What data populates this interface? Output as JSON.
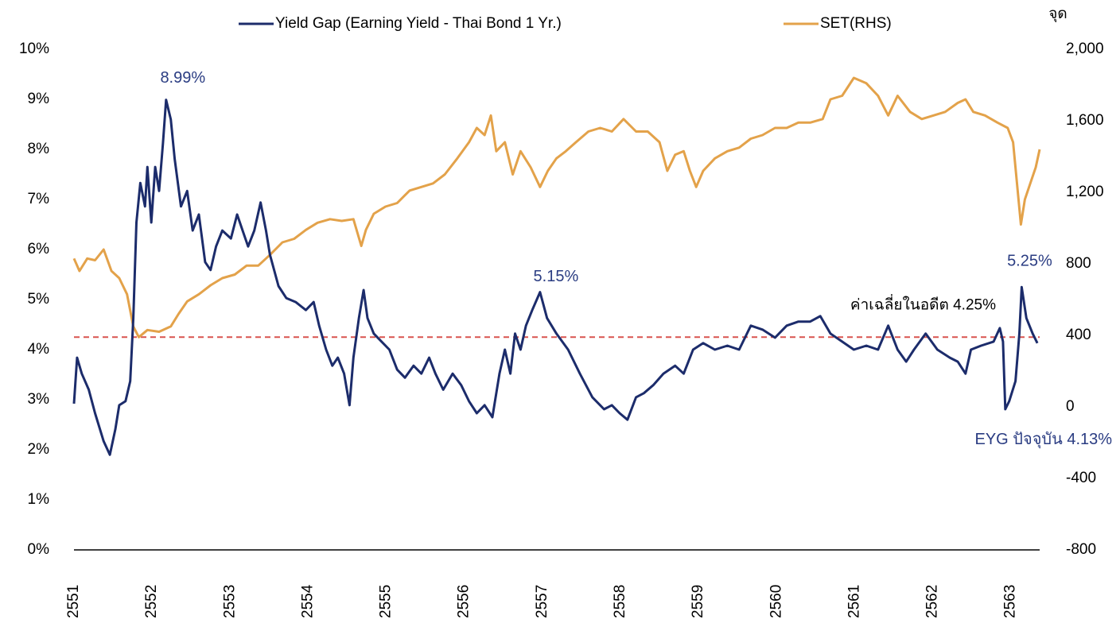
{
  "chart_data": {
    "type": "line",
    "y2_label": "จุด",
    "xlim": [
      2551,
      2563.37
    ],
    "xticks": [
      2551,
      2552,
      2553,
      2554,
      2555,
      2556,
      2557,
      2558,
      2559,
      2560,
      2561,
      2562,
      2563
    ],
    "ylim": [
      0,
      10
    ],
    "yticks": [
      {
        "value": 0,
        "label": "0%"
      },
      {
        "value": 1,
        "label": "1%"
      },
      {
        "value": 2,
        "label": "2%"
      },
      {
        "value": 3,
        "label": "3%"
      },
      {
        "value": 4,
        "label": "4%"
      },
      {
        "value": 5,
        "label": "5%"
      },
      {
        "value": 6,
        "label": "6%"
      },
      {
        "value": 7,
        "label": "7%"
      },
      {
        "value": 8,
        "label": "8%"
      },
      {
        "value": 9,
        "label": "9%"
      },
      {
        "value": 10,
        "label": "10%"
      }
    ],
    "y2lim": [
      -800,
      2000
    ],
    "y2ticks": [
      -800,
      -400,
      0,
      400,
      800,
      {
        "value": 1200,
        "label": "1,200"
      },
      {
        "value": 1600,
        "label": "1,600"
      },
      {
        "value": 2000,
        "label": "2,000"
      }
    ],
    "series": [
      {
        "name": "Yield Gap (Earning Yield - Thai Bond 1 Yr.)",
        "color": "#1c2c6b",
        "x": [
          2551.0,
          2551.04,
          2551.1,
          2551.19,
          2551.27,
          2551.38,
          2551.46,
          2551.53,
          2551.58,
          2551.66,
          2551.72,
          2551.76,
          2551.8,
          2551.85,
          2551.91,
          2551.94,
          2551.99,
          2552.04,
          2552.09,
          2552.14,
          2552.18,
          2552.24,
          2552.29,
          2552.37,
          2552.45,
          2552.52,
          2552.6,
          2552.68,
          2552.75,
          2552.82,
          2552.9,
          2553.01,
          2553.09,
          2553.16,
          2553.23,
          2553.31,
          2553.39,
          2553.46,
          2553.51,
          2553.62,
          2553.72,
          2553.84,
          2553.97,
          2554.07,
          2554.14,
          2554.23,
          2554.31,
          2554.38,
          2554.46,
          2554.53,
          2554.58,
          2554.65,
          2554.71,
          2554.76,
          2554.84,
          2554.94,
          2555.04,
          2555.14,
          2555.24,
          2555.35,
          2555.45,
          2555.55,
          2555.63,
          2555.73,
          2555.85,
          2555.96,
          2556.06,
          2556.16,
          2556.26,
          2556.36,
          2556.45,
          2556.52,
          2556.59,
          2556.65,
          2556.72,
          2556.79,
          2556.87,
          2556.97,
          2557.06,
          2557.18,
          2557.33,
          2557.48,
          2557.64,
          2557.79,
          2557.89,
          2557.99,
          2558.09,
          2558.2,
          2558.3,
          2558.42,
          2558.55,
          2558.7,
          2558.81,
          2558.93,
          2559.06,
          2559.21,
          2559.37,
          2559.52,
          2559.67,
          2559.82,
          2559.98,
          2560.13,
          2560.28,
          2560.43,
          2560.56,
          2560.69,
          2560.84,
          2560.99,
          2561.15,
          2561.3,
          2561.43,
          2561.55,
          2561.66,
          2561.76,
          2561.91,
          2562.06,
          2562.22,
          2562.32,
          2562.42,
          2562.49,
          2562.62,
          2562.78,
          2562.86,
          2562.9,
          2562.93,
          2562.98,
          2563.06,
          2563.11,
          2563.14,
          2563.2,
          2563.28,
          2563.34
        ],
        "values": [
          2.92,
          3.84,
          3.52,
          3.2,
          2.73,
          2.17,
          1.9,
          2.41,
          2.89,
          2.97,
          3.37,
          4.63,
          6.54,
          7.33,
          6.86,
          7.65,
          6.54,
          7.65,
          7.17,
          8.13,
          8.99,
          8.6,
          7.81,
          6.86,
          7.17,
          6.38,
          6.7,
          5.75,
          5.59,
          6.06,
          6.38,
          6.22,
          6.7,
          6.38,
          6.06,
          6.38,
          6.94,
          6.38,
          5.9,
          5.27,
          5.03,
          4.95,
          4.79,
          4.95,
          4.48,
          4.0,
          3.68,
          3.84,
          3.52,
          2.89,
          3.84,
          4.63,
          5.19,
          4.63,
          4.32,
          4.16,
          4.0,
          3.6,
          3.44,
          3.68,
          3.52,
          3.84,
          3.52,
          3.2,
          3.52,
          3.29,
          2.97,
          2.73,
          2.89,
          2.65,
          3.52,
          4.0,
          3.52,
          4.32,
          4.0,
          4.48,
          4.79,
          5.15,
          4.63,
          4.32,
          4.0,
          3.52,
          3.05,
          2.81,
          2.89,
          2.73,
          2.6,
          3.05,
          3.13,
          3.29,
          3.52,
          3.68,
          3.52,
          4.0,
          4.13,
          4.0,
          4.08,
          4.0,
          4.48,
          4.4,
          4.24,
          4.48,
          4.56,
          4.56,
          4.67,
          4.32,
          4.16,
          4.0,
          4.08,
          4.0,
          4.48,
          4.0,
          3.76,
          4.0,
          4.32,
          4.0,
          3.84,
          3.76,
          3.52,
          4.0,
          4.08,
          4.16,
          4.43,
          4.16,
          2.81,
          2.97,
          3.37,
          4.32,
          5.25,
          4.63,
          4.32,
          4.13
        ]
      },
      {
        "name": "SET(RHS)",
        "color": "#e3a24a",
        "axis": "y2",
        "x": [
          2551.0,
          2551.07,
          2551.17,
          2551.27,
          2551.38,
          2551.48,
          2551.58,
          2551.68,
          2551.76,
          2551.83,
          2551.94,
          2552.09,
          2552.24,
          2552.34,
          2552.45,
          2552.6,
          2552.75,
          2552.9,
          2553.06,
          2553.21,
          2553.36,
          2553.51,
          2553.67,
          2553.82,
          2553.97,
          2554.12,
          2554.28,
          2554.43,
          2554.58,
          2554.68,
          2554.74,
          2554.84,
          2554.99,
          2555.14,
          2555.3,
          2555.45,
          2555.6,
          2555.75,
          2555.91,
          2556.06,
          2556.16,
          2556.26,
          2556.34,
          2556.41,
          2556.52,
          2556.62,
          2556.72,
          2556.85,
          2556.97,
          2557.07,
          2557.18,
          2557.3,
          2557.43,
          2557.59,
          2557.74,
          2557.89,
          2558.04,
          2558.2,
          2558.35,
          2558.5,
          2558.6,
          2558.7,
          2558.81,
          2558.89,
          2558.97,
          2559.06,
          2559.21,
          2559.37,
          2559.52,
          2559.67,
          2559.82,
          2559.98,
          2560.13,
          2560.28,
          2560.43,
          2560.59,
          2560.69,
          2560.84,
          2560.99,
          2561.15,
          2561.3,
          2561.43,
          2561.55,
          2561.71,
          2561.86,
          2562.01,
          2562.16,
          2562.32,
          2562.42,
          2562.52,
          2562.67,
          2562.83,
          2562.96,
          2563.03,
          2563.08,
          2563.13,
          2563.18,
          2563.25,
          2563.32,
          2563.37
        ],
        "values": [
          830,
          760,
          830,
          820,
          880,
          760,
          720,
          630,
          450,
          390,
          430,
          420,
          450,
          520,
          590,
          630,
          680,
          720,
          740,
          790,
          790,
          850,
          920,
          940,
          990,
          1030,
          1050,
          1040,
          1050,
          900,
          990,
          1080,
          1120,
          1140,
          1210,
          1230,
          1250,
          1300,
          1390,
          1480,
          1560,
          1520,
          1630,
          1430,
          1480,
          1300,
          1430,
          1340,
          1230,
          1320,
          1390,
          1430,
          1480,
          1540,
          1560,
          1540,
          1610,
          1540,
          1540,
          1480,
          1320,
          1410,
          1430,
          1320,
          1230,
          1320,
          1390,
          1430,
          1450,
          1500,
          1520,
          1560,
          1560,
          1590,
          1590,
          1610,
          1720,
          1740,
          1840,
          1810,
          1740,
          1630,
          1740,
          1650,
          1610,
          1630,
          1650,
          1700,
          1720,
          1650,
          1630,
          1590,
          1560,
          1480,
          1250,
          1020,
          1160,
          1250,
          1340,
          1440
        ]
      }
    ],
    "hline": {
      "value": 4.25,
      "label": "ค่าเฉลี่ยในอดีต 4.25%",
      "color": "#d9534f"
    },
    "annotations": [
      {
        "label": "8.99%",
        "x": 2552.18,
        "y": 8.99
      },
      {
        "label": "5.15%",
        "x": 2556.97,
        "y": 5.15
      },
      {
        "label": "5.25%",
        "x": 2563.14,
        "y": 5.25
      },
      {
        "label": "EYG ปัจจุบัน 4.13%",
        "x": 2563.34,
        "y": 4.13
      }
    ]
  }
}
